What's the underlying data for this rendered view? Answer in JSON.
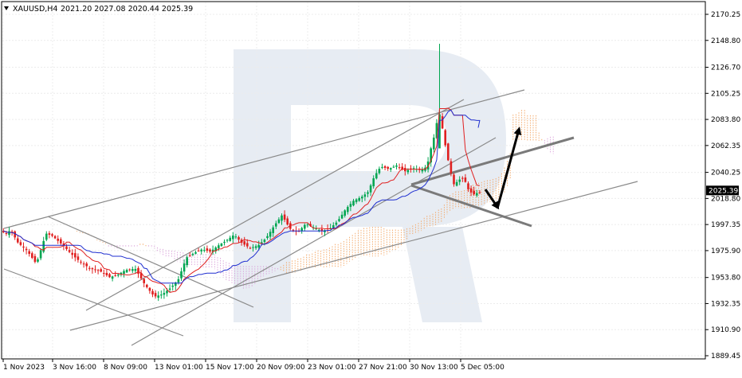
{
  "header": {
    "symbol_label": "XAUUSD,H4",
    "ohlc_text": "2021.20 2027.08 2020.44 2025.39"
  },
  "chart_data": {
    "type": "candlestick",
    "symbol": "XAUUSD",
    "timeframe": "H4",
    "ohlc": {
      "open": 2021.2,
      "high": 2027.08,
      "low": 2020.44,
      "close": 2025.39
    },
    "current_price": 2025.39,
    "ylim": [
      1889.45,
      2181.0
    ],
    "y_ticks": [
      2170.25,
      2148.8,
      2126.7,
      2105.25,
      2083.8,
      2062.35,
      2040.25,
      2018.8,
      1997.35,
      1975.9,
      1953.8,
      1932.35,
      1910.9,
      1889.45
    ],
    "x_tick_labels": [
      "1 Nov 2023",
      "3 Nov 16:00",
      "8 Nov 09:00",
      "13 Nov 01:00",
      "15 Nov 17:00",
      "20 Nov 09:00",
      "23 Nov 01:00",
      "27 Nov 21:00",
      "30 Nov 13:00",
      "5 Dec 05:00"
    ],
    "grid": true,
    "watermark": "R",
    "colors": {
      "bull": "#00a651",
      "bear": "#e02020",
      "tenkan": "#e02020",
      "kijun": "#1f2fd0",
      "cloud_a": "#f4a460",
      "cloud_b": "#d9a0d9",
      "trend": "#8a8a8a",
      "forecast": "#000000"
    }
  }
}
